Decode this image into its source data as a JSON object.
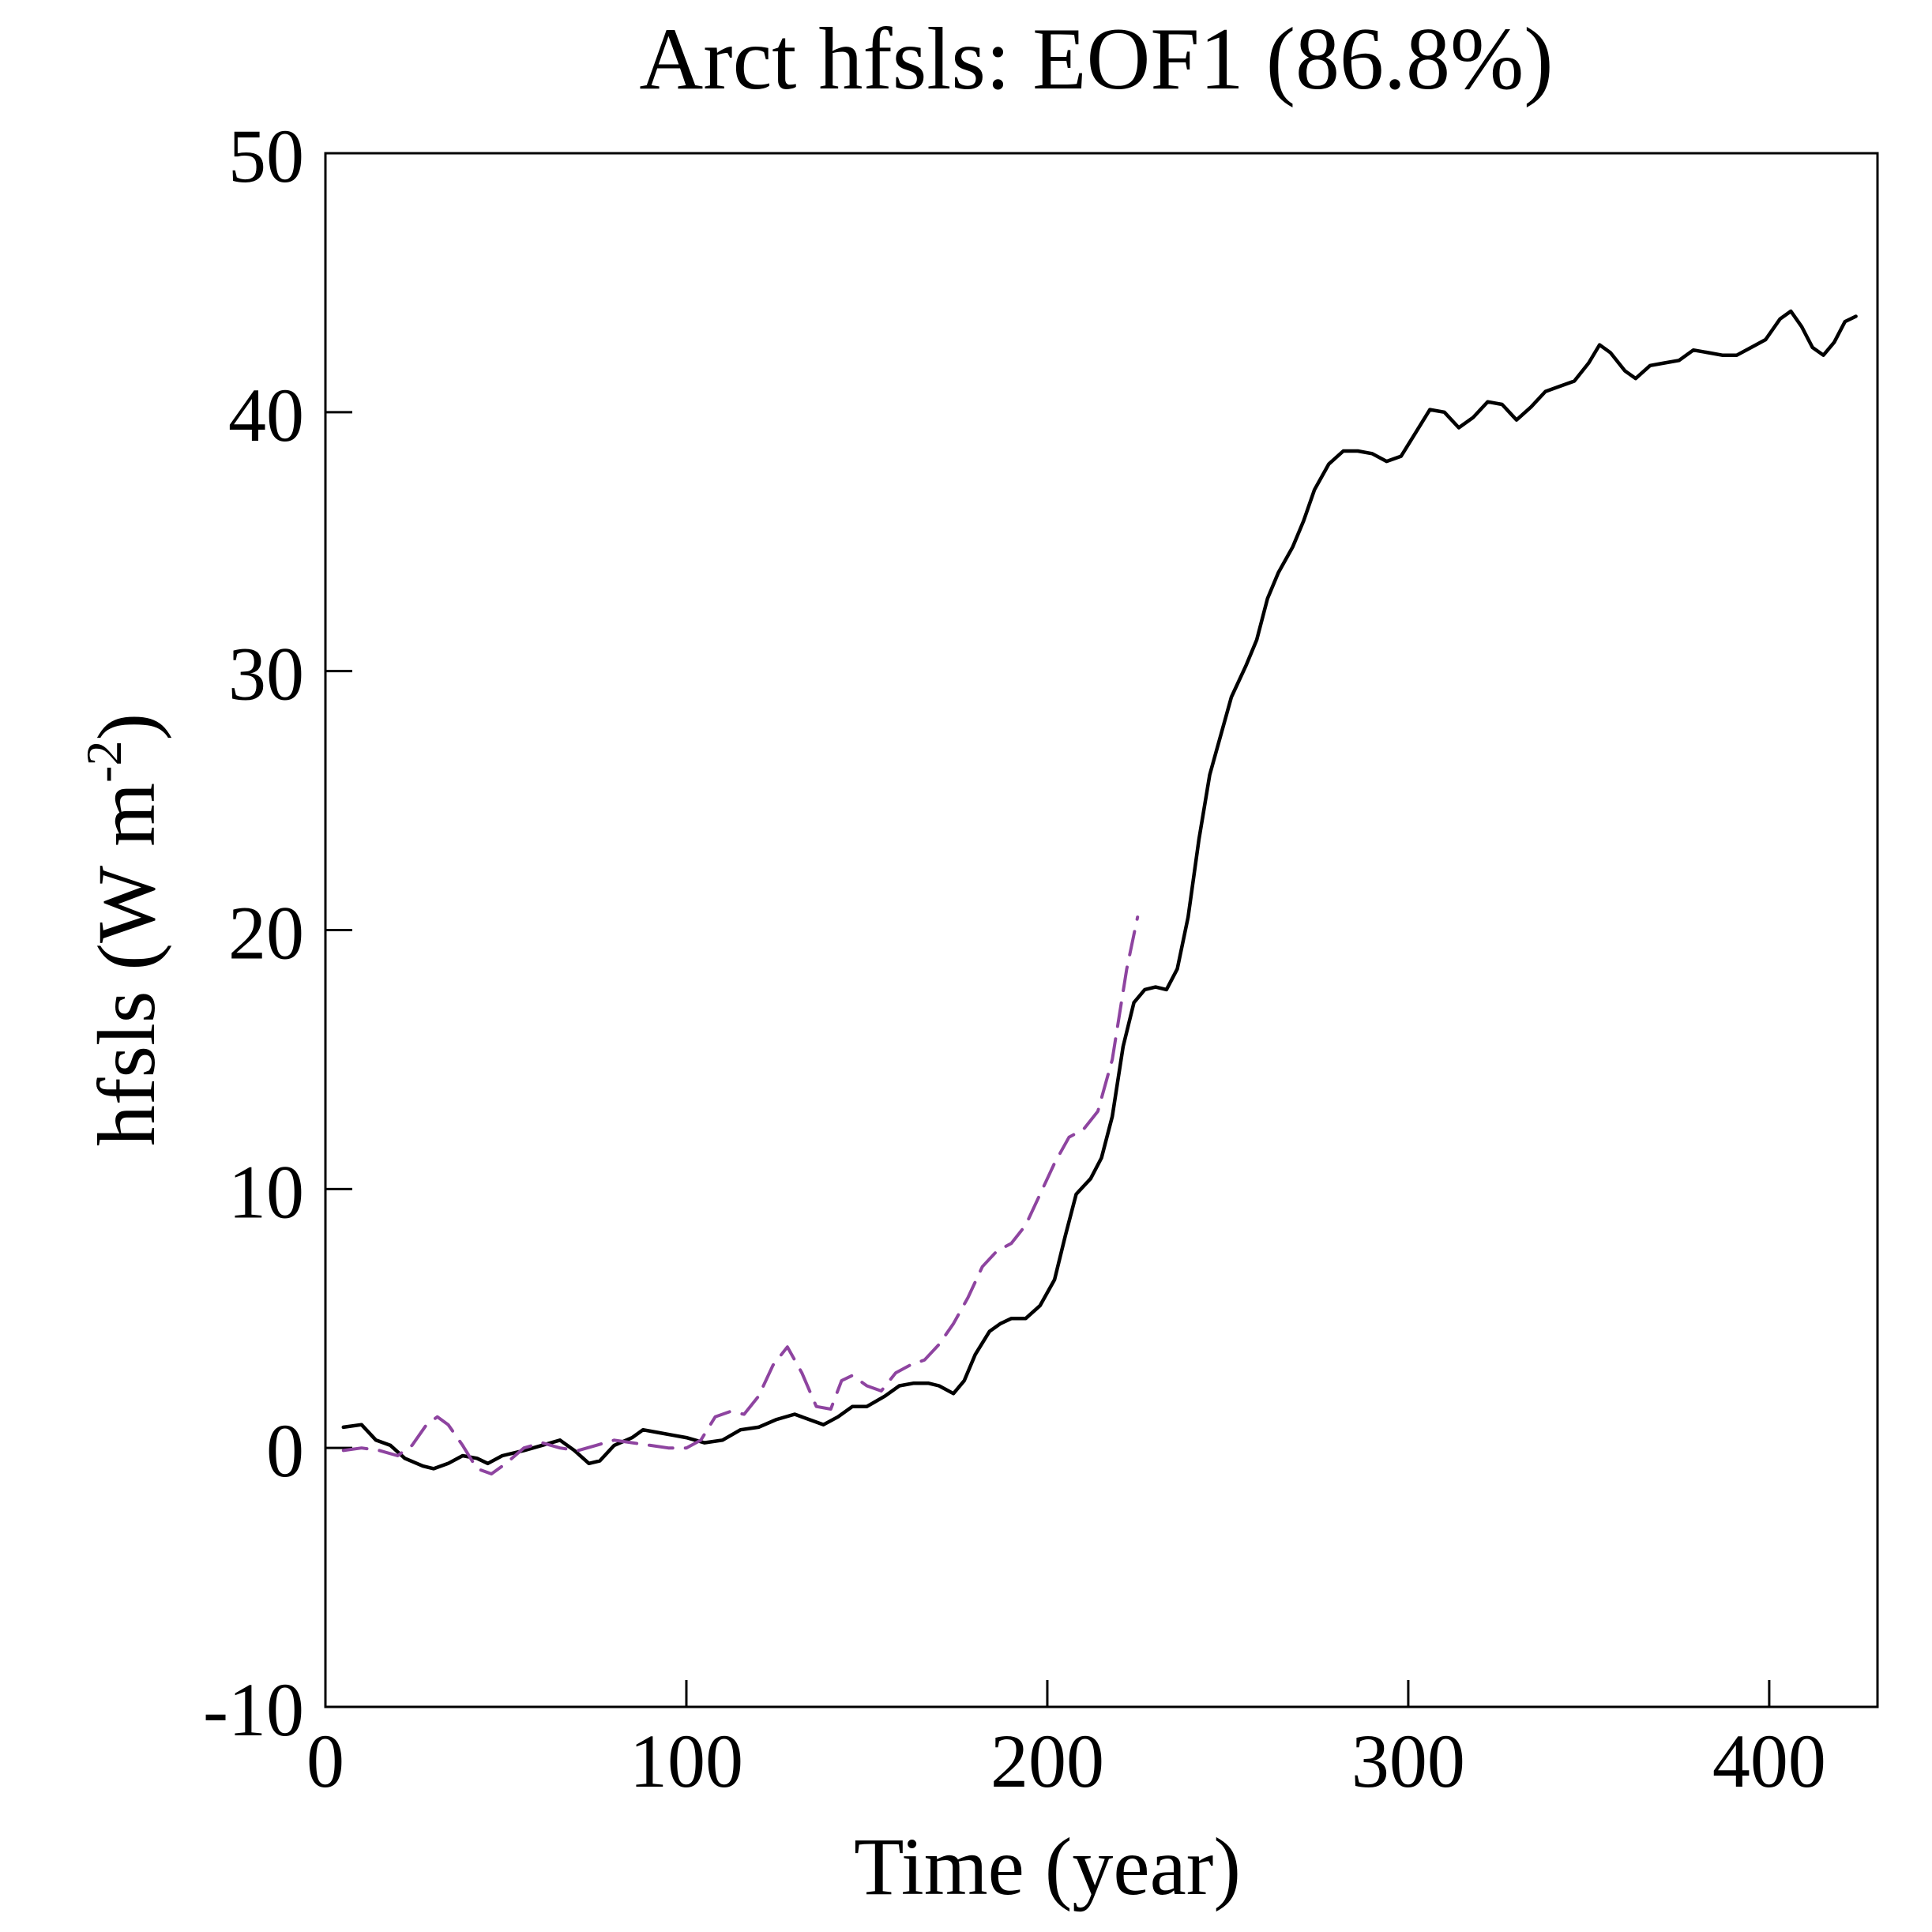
{
  "chart_data": {
    "type": "line",
    "title": "Arct hfsls: EOF1 (86.8%)",
    "xlabel": "Time (year)",
    "ylabel": "hfsls (W m",
    "ylabel_sup": "-2",
    "ylabel_close": ")",
    "xlim": [
      0,
      430
    ],
    "ylim": [
      -10,
      50
    ],
    "xticks": [
      0,
      100,
      200,
      300,
      400
    ],
    "yticks": [
      -10,
      0,
      10,
      20,
      30,
      40,
      50
    ],
    "grid": false,
    "series": [
      {
        "name": "series-1",
        "color": "#000000",
        "style": "solid",
        "points": [
          [
            5,
            0.8
          ],
          [
            10,
            0.9
          ],
          [
            14,
            0.3
          ],
          [
            18,
            0.1
          ],
          [
            22,
            -0.4
          ],
          [
            27,
            -0.7
          ],
          [
            30,
            -0.8
          ],
          [
            34,
            -0.6
          ],
          [
            38,
            -0.3
          ],
          [
            42,
            -0.4
          ],
          [
            45,
            -0.6
          ],
          [
            49,
            -0.3
          ],
          [
            55,
            -0.1
          ],
          [
            60,
            0.1
          ],
          [
            65,
            0.3
          ],
          [
            69,
            -0.1
          ],
          [
            73,
            -0.6
          ],
          [
            76,
            -0.5
          ],
          [
            80,
            0.1
          ],
          [
            85,
            0.4
          ],
          [
            88,
            0.7
          ],
          [
            92,
            0.6
          ],
          [
            96,
            0.5
          ],
          [
            100,
            0.4
          ],
          [
            105,
            0.2
          ],
          [
            110,
            0.3
          ],
          [
            115,
            0.7
          ],
          [
            120,
            0.8
          ],
          [
            125,
            1.1
          ],
          [
            130,
            1.3
          ],
          [
            134,
            1.1
          ],
          [
            138,
            0.9
          ],
          [
            142,
            1.2
          ],
          [
            146,
            1.6
          ],
          [
            150,
            1.6
          ],
          [
            155,
            2.0
          ],
          [
            159,
            2.4
          ],
          [
            163,
            2.5
          ],
          [
            167,
            2.5
          ],
          [
            170,
            2.4
          ],
          [
            174,
            2.1
          ],
          [
            177,
            2.6
          ],
          [
            180,
            3.6
          ],
          [
            184,
            4.5
          ],
          [
            187,
            4.8
          ],
          [
            190,
            5.0
          ],
          [
            194,
            5.0
          ],
          [
            198,
            5.5
          ],
          [
            202,
            6.5
          ],
          [
            205,
            8.2
          ],
          [
            208,
            9.8
          ],
          [
            212,
            10.4
          ],
          [
            215,
            11.2
          ],
          [
            218,
            12.8
          ],
          [
            221,
            15.5
          ],
          [
            224,
            17.2
          ],
          [
            227,
            17.7
          ],
          [
            230,
            17.8
          ],
          [
            233,
            17.7
          ],
          [
            236,
            18.5
          ],
          [
            239,
            20.5
          ],
          [
            242,
            23.5
          ],
          [
            245,
            26.0
          ],
          [
            248,
            27.5
          ],
          [
            251,
            29.0
          ],
          [
            255,
            30.2
          ],
          [
            258,
            31.2
          ],
          [
            261,
            32.8
          ],
          [
            264,
            33.8
          ],
          [
            268,
            34.8
          ],
          [
            271,
            35.8
          ],
          [
            274,
            37.0
          ],
          [
            278,
            38.0
          ],
          [
            282,
            38.5
          ],
          [
            286,
            38.5
          ],
          [
            290,
            38.4
          ],
          [
            294,
            38.1
          ],
          [
            298,
            38.3
          ],
          [
            302,
            39.2
          ],
          [
            306,
            40.1
          ],
          [
            310,
            40.0
          ],
          [
            314,
            39.4
          ],
          [
            318,
            39.8
          ],
          [
            322,
            40.4
          ],
          [
            326,
            40.3
          ],
          [
            330,
            39.7
          ],
          [
            334,
            40.2
          ],
          [
            338,
            40.8
          ],
          [
            342,
            41.0
          ],
          [
            346,
            41.2
          ],
          [
            350,
            41.9
          ],
          [
            353,
            42.6
          ],
          [
            356,
            42.3
          ],
          [
            360,
            41.6
          ],
          [
            363,
            41.3
          ],
          [
            367,
            41.8
          ],
          [
            371,
            41.9
          ],
          [
            375,
            42.0
          ],
          [
            379,
            42.4
          ],
          [
            383,
            42.3
          ],
          [
            387,
            42.2
          ],
          [
            391,
            42.2
          ],
          [
            395,
            42.5
          ],
          [
            399,
            42.8
          ],
          [
            403,
            43.6
          ],
          [
            406,
            43.9
          ],
          [
            409,
            43.3
          ],
          [
            412,
            42.5
          ],
          [
            415,
            42.2
          ],
          [
            418,
            42.7
          ],
          [
            421,
            43.5
          ],
          [
            424,
            43.7
          ]
        ]
      },
      {
        "name": "series-2",
        "color": "#8e44a0",
        "style": "dashed",
        "points": [
          [
            5,
            -0.1
          ],
          [
            10,
            0.0
          ],
          [
            15,
            -0.1
          ],
          [
            20,
            -0.3
          ],
          [
            24,
            0.1
          ],
          [
            28,
            0.9
          ],
          [
            31,
            1.2
          ],
          [
            34,
            0.9
          ],
          [
            38,
            0.1
          ],
          [
            42,
            -0.8
          ],
          [
            46,
            -1.0
          ],
          [
            50,
            -0.6
          ],
          [
            55,
            0.0
          ],
          [
            60,
            0.2
          ],
          [
            65,
            0.0
          ],
          [
            70,
            -0.1
          ],
          [
            75,
            0.1
          ],
          [
            80,
            0.3
          ],
          [
            85,
            0.2
          ],
          [
            90,
            0.1
          ],
          [
            95,
            0.0
          ],
          [
            100,
            0.0
          ],
          [
            104,
            0.3
          ],
          [
            108,
            1.2
          ],
          [
            112,
            1.4
          ],
          [
            116,
            1.3
          ],
          [
            120,
            2.0
          ],
          [
            124,
            3.2
          ],
          [
            128,
            3.9
          ],
          [
            132,
            2.9
          ],
          [
            136,
            1.6
          ],
          [
            140,
            1.5
          ],
          [
            143,
            2.6
          ],
          [
            146,
            2.8
          ],
          [
            150,
            2.4
          ],
          [
            154,
            2.2
          ],
          [
            158,
            2.9
          ],
          [
            162,
            3.2
          ],
          [
            166,
            3.4
          ],
          [
            170,
            4.0
          ],
          [
            174,
            4.8
          ],
          [
            178,
            5.8
          ],
          [
            182,
            7.0
          ],
          [
            186,
            7.6
          ],
          [
            190,
            7.9
          ],
          [
            194,
            8.6
          ],
          [
            198,
            9.8
          ],
          [
            202,
            11.0
          ],
          [
            206,
            12.0
          ],
          [
            210,
            12.3
          ],
          [
            214,
            13.0
          ],
          [
            218,
            15.0
          ],
          [
            222,
            18.5
          ],
          [
            225,
            20.5
          ]
        ]
      }
    ]
  }
}
